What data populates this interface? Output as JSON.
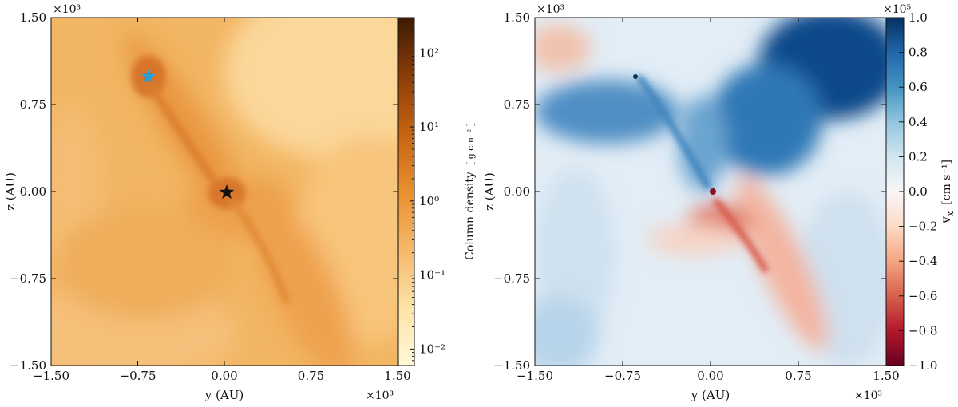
{
  "chart_data": [
    {
      "type": "heatmap",
      "title": "",
      "xlabel": "y  (AU)",
      "ylabel": "z  (AU)",
      "x_multiplier": "×10³",
      "y_multiplier": "×10³",
      "xlim": [
        -1.5,
        1.5
      ],
      "ylim": [
        -1.5,
        1.5
      ],
      "x_ticks": [
        -1.5,
        -0.75,
        0.0,
        0.75,
        1.5
      ],
      "x_tick_labels": [
        "−1.50",
        "−0.75",
        "0.00",
        "0.75",
        "1.50"
      ],
      "y_ticks": [
        -1.5,
        -0.75,
        0.0,
        0.75,
        1.5
      ],
      "y_tick_labels": [
        "−1.50",
        "−0.75",
        "0.00",
        "0.75",
        "1.50"
      ],
      "colorbar": {
        "label": "Column density",
        "unit": "[ g cm⁻² ]",
        "scale": "log",
        "range": [
          0.006,
          300
        ],
        "ticks": [
          0.01,
          0.1,
          1,
          10,
          100
        ],
        "tick_labels": [
          "10⁻²",
          "10⁻¹",
          "10⁰",
          "10¹",
          "10²"
        ],
        "colors": [
          "#fff9d8",
          "#fde3a8",
          "#f5b86a",
          "#e8902f",
          "#c66312",
          "#8a3d08",
          "#3d1a02"
        ]
      },
      "markers": [
        {
          "y": -0.68,
          "z": 1.0,
          "shape": "star",
          "color": "#2a9fd8"
        },
        {
          "y": 0.0,
          "z": 0.0,
          "shape": "star",
          "color": "#111111"
        }
      ]
    },
    {
      "type": "heatmap",
      "title": "",
      "xlabel": "y  (AU)",
      "ylabel": "z  (AU)",
      "x_multiplier": "×10³",
      "y_multiplier": "×10³",
      "xlim": [
        -1.5,
        1.5
      ],
      "ylim": [
        -1.5,
        1.5
      ],
      "x_ticks": [
        -1.5,
        -0.75,
        0.0,
        0.75,
        1.5
      ],
      "x_tick_labels": [
        "−1.50",
        "−0.75",
        "0.00",
        "0.75",
        "1.50"
      ],
      "y_ticks": [
        -1.5,
        -0.75,
        0.0,
        0.75,
        1.5
      ],
      "y_tick_labels": [
        "−1.50",
        "−0.75",
        "0.00",
        "0.75",
        "1.50"
      ],
      "colorbar": {
        "label": "v",
        "label_sub": "x",
        "unit": "[cm s⁻¹]",
        "multiplier": "×10⁵",
        "scale": "linear",
        "range": [
          -1.0,
          1.0
        ],
        "ticks": [
          -1.0,
          -0.8,
          -0.6,
          -0.4,
          -0.2,
          0.0,
          0.2,
          0.4,
          0.6,
          0.8,
          1.0
        ],
        "tick_labels": [
          "−1.0",
          "−0.8",
          "−0.6",
          "−0.4",
          "−0.2",
          "0.0",
          "0.2",
          "0.4",
          "0.6",
          "0.8",
          "1.0"
        ],
        "colors": [
          "#67001f",
          "#b2182b",
          "#d6604d",
          "#f4a582",
          "#fddbc7",
          "#f7f7f7",
          "#d1e5f0",
          "#92c5de",
          "#4393c3",
          "#2166ac",
          "#053061"
        ]
      }
    }
  ]
}
